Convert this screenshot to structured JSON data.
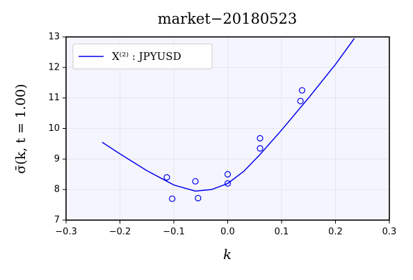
{
  "chart_data": {
    "type": "line",
    "title": "market−20180523",
    "x_label": "k",
    "y_label": "σ̄(k, t = 1.00)",
    "xlim": [
      -0.3,
      0.3
    ],
    "ylim": [
      7,
      13
    ],
    "xticks": [
      {
        "value": -0.3,
        "label": "−0.3"
      },
      {
        "value": -0.2,
        "label": "−0.2"
      },
      {
        "value": -0.1,
        "label": "−0.1"
      },
      {
        "value": 0,
        "label": "0.0"
      },
      {
        "value": 0.1,
        "label": "0.1"
      },
      {
        "value": 0.2,
        "label": "0.2"
      },
      {
        "value": 0.3,
        "label": "0.3"
      }
    ],
    "yticks": [
      7,
      8,
      9,
      10,
      11,
      12,
      13
    ],
    "grid": true,
    "legend": "upper-left",
    "series": [
      {
        "name": "X⁽²⁾ : JPYUSD",
        "color": "#0000ee",
        "x": [
          -0.233,
          -0.2,
          -0.15,
          -0.1,
          -0.06,
          -0.03,
          0,
          0.03,
          0.06,
          0.1,
          0.15,
          0.2,
          0.235
        ],
        "values": [
          9.55,
          9.17,
          8.62,
          8.15,
          7.95,
          8.0,
          8.2,
          8.6,
          9.15,
          9.95,
          11.0,
          12.1,
          12.95
        ]
      },
      {
        "type": "scatter",
        "color": "#0000ee",
        "x": [
          -0.113,
          -0.103,
          -0.06,
          -0.055,
          0.0,
          0.0,
          0.06,
          0.06,
          0.135,
          0.138
        ],
        "values": [
          8.4,
          7.7,
          8.27,
          7.72,
          8.5,
          8.2,
          9.68,
          9.35,
          10.9,
          11.25
        ]
      }
    ]
  }
}
